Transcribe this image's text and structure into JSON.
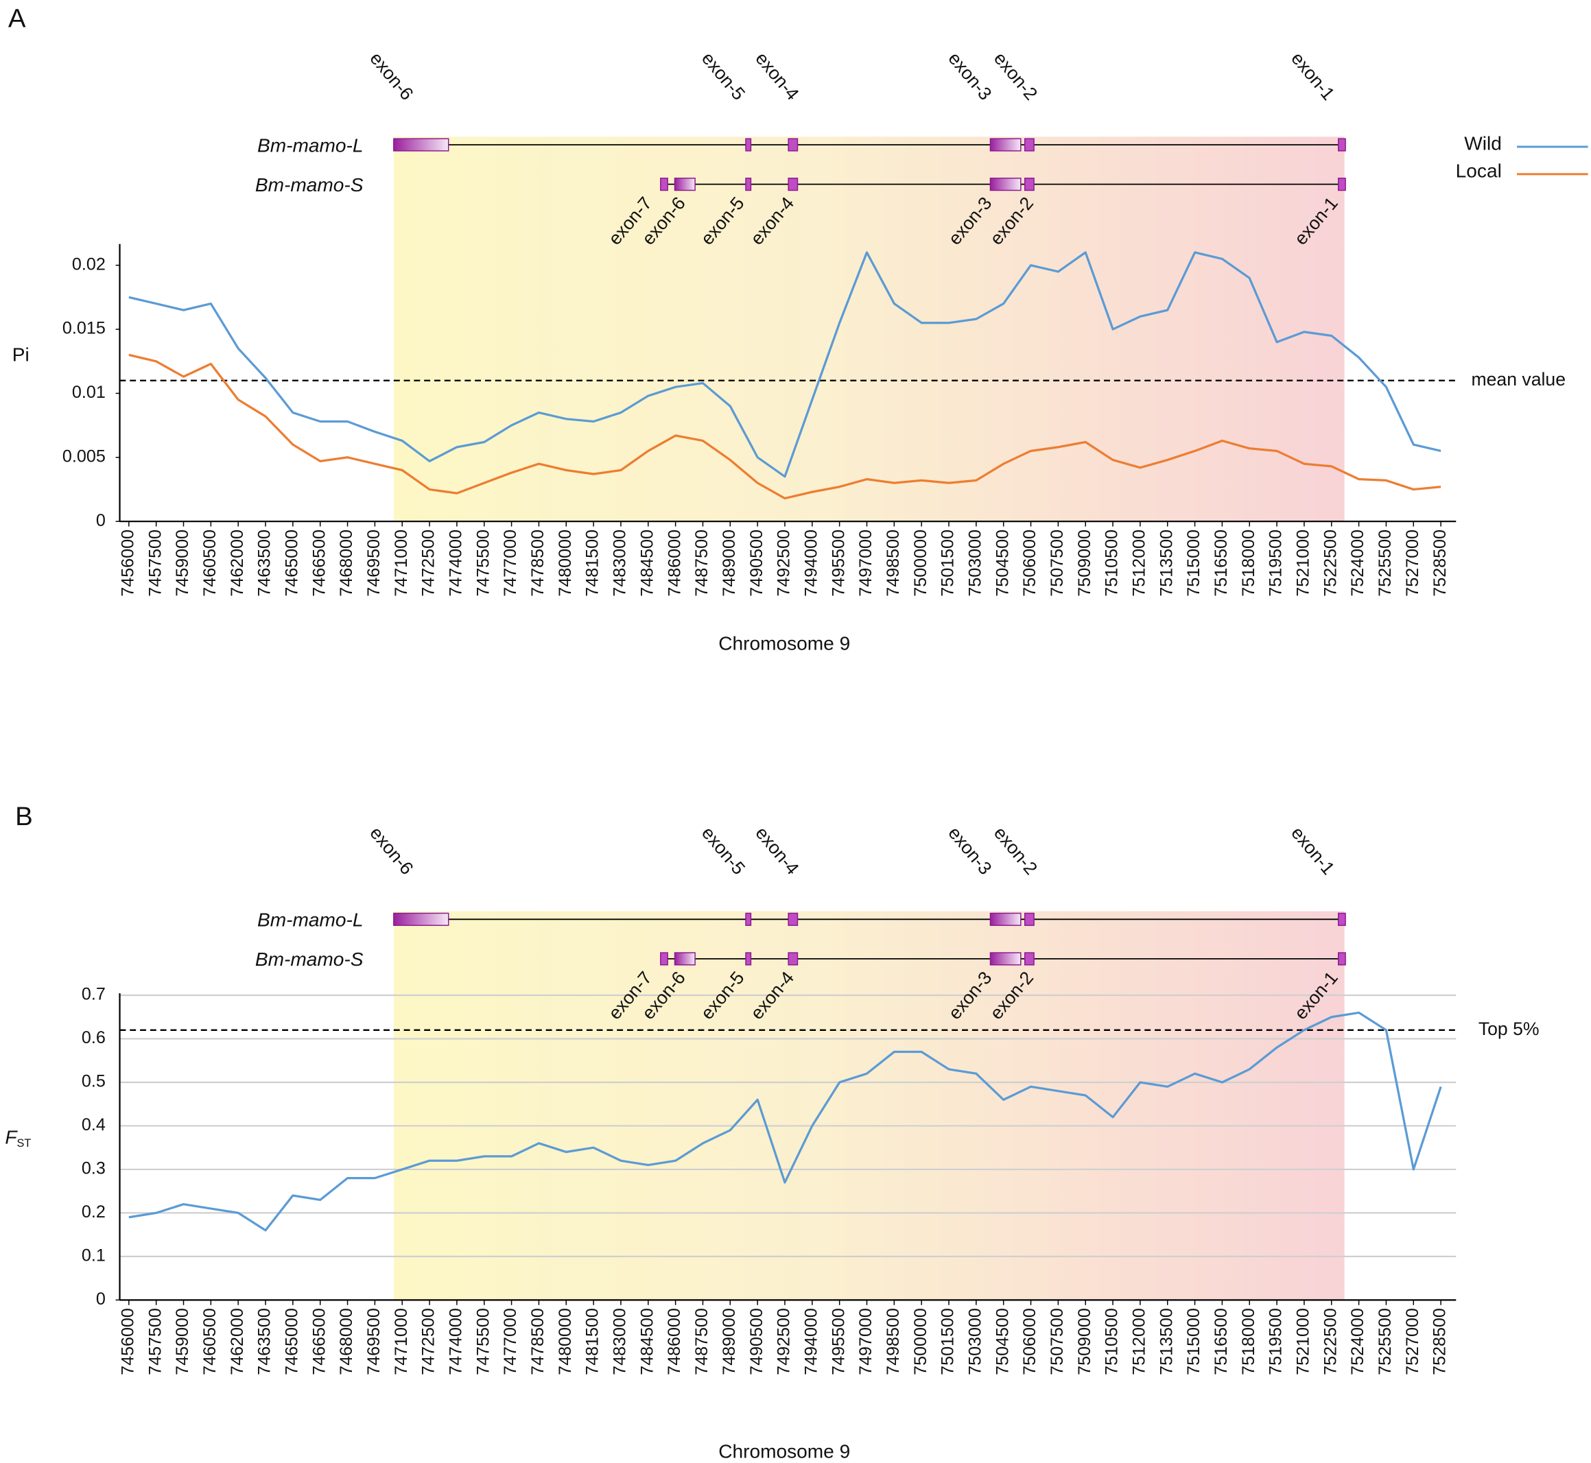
{
  "chart_data": [
    {
      "panel": "A",
      "type": "line",
      "gene_models": [
        {
          "name": "Bm-mamo-L",
          "exon_labels": [
            "exon-6",
            "exon-5",
            "exon-4",
            "exon-3",
            "exon-2",
            "exon-1"
          ]
        },
        {
          "name": "Bm-mamo-S",
          "exon_labels": [
            "exon-7",
            "exon-6",
            "exon-5",
            "exon-4",
            "exon-3",
            "exon-2",
            "exon-1"
          ]
        }
      ],
      "categories": [
        "7456000",
        "7457500",
        "7459000",
        "7460500",
        "7462000",
        "7463500",
        "7465000",
        "7466500",
        "7468000",
        "7469500",
        "7471000",
        "7472500",
        "7474000",
        "7475500",
        "7477000",
        "7478500",
        "7480000",
        "7481500",
        "7483000",
        "7484500",
        "7486000",
        "7487500",
        "7489000",
        "7490500",
        "7492500",
        "7494000",
        "7495500",
        "7497000",
        "7498500",
        "7500000",
        "7501500",
        "7503000",
        "7504500",
        "7506000",
        "7507500",
        "7509000",
        "7510500",
        "7512000",
        "7513500",
        "7515000",
        "7516500",
        "7518000",
        "7519500",
        "7521000",
        "7522500",
        "7524000",
        "7525500",
        "7527000",
        "7528500"
      ],
      "series": [
        {
          "name": "Wild",
          "color": "#5b9bd5",
          "values": [
            0.0175,
            0.017,
            0.0165,
            0.017,
            0.0135,
            0.0112,
            0.0085,
            0.0078,
            0.0078,
            0.007,
            0.0063,
            0.0047,
            0.0058,
            0.0062,
            0.0075,
            0.0085,
            0.008,
            0.0078,
            0.0085,
            0.0098,
            0.0105,
            0.0108,
            0.009,
            0.005,
            0.0035,
            0.0095,
            0.0155,
            0.021,
            0.017,
            0.0155,
            0.0155,
            0.0158,
            0.017,
            0.02,
            0.0195,
            0.021,
            0.015,
            0.016,
            0.0165,
            0.021,
            0.0205,
            0.019,
            0.014,
            0.0148,
            0.0145,
            0.0128,
            0.0105,
            0.006,
            0.0055
          ]
        },
        {
          "name": "Local",
          "color": "#ed7d31",
          "values": [
            0.013,
            0.0125,
            0.0113,
            0.0123,
            0.0095,
            0.0082,
            0.006,
            0.0047,
            0.005,
            0.0045,
            0.004,
            0.0025,
            0.0022,
            0.003,
            0.0038,
            0.0045,
            0.004,
            0.0037,
            0.004,
            0.0055,
            0.0067,
            0.0063,
            0.0048,
            0.003,
            0.0018,
            0.0023,
            0.0027,
            0.0033,
            0.003,
            0.0032,
            0.003,
            0.0032,
            0.0045,
            0.0055,
            0.0058,
            0.0062,
            0.0048,
            0.0042,
            0.0048,
            0.0055,
            0.0063,
            0.0057,
            0.0055,
            0.0045,
            0.0043,
            0.0033,
            0.0032,
            0.0025,
            0.0027
          ]
        }
      ],
      "x_label": "Chromosome 9",
      "y_label": "Pi",
      "ylim": [
        0,
        0.0215
      ],
      "yticks": [
        0,
        0.005,
        0.01,
        0.015,
        0.02
      ],
      "grid": false,
      "reference_line": {
        "value": 0.011,
        "label": "mean value"
      },
      "legend": "top-right"
    },
    {
      "panel": "B",
      "type": "line",
      "gene_models": [
        {
          "name": "Bm-mamo-L",
          "exon_labels": [
            "exon-6",
            "exon-5",
            "exon-4",
            "exon-3",
            "exon-2",
            "exon-1"
          ]
        },
        {
          "name": "Bm-mamo-S",
          "exon_labels": [
            "exon-7",
            "exon-6",
            "exon-5",
            "exon-4",
            "exon-3",
            "exon-2",
            "exon-1"
          ]
        }
      ],
      "categories": [
        "7456000",
        "7457500",
        "7459000",
        "7460500",
        "7462000",
        "7463500",
        "7465000",
        "7466500",
        "7468000",
        "7469500",
        "7471000",
        "7472500",
        "7474000",
        "7475500",
        "7477000",
        "7478500",
        "7480000",
        "7481500",
        "7483000",
        "7484500",
        "7486000",
        "7487500",
        "7489000",
        "7490500",
        "7492500",
        "7494000",
        "7495500",
        "7497000",
        "7498500",
        "7500000",
        "7501500",
        "7503000",
        "7504500",
        "7506000",
        "7507500",
        "7509000",
        "7510500",
        "7512000",
        "7513500",
        "7515000",
        "7516500",
        "7518000",
        "7519500",
        "7521000",
        "7522500",
        "7524000",
        "7525500",
        "7527000",
        "7528500"
      ],
      "series": [
        {
          "color": "#5b9bd5",
          "values": [
            0.19,
            0.2,
            0.22,
            0.21,
            0.2,
            0.16,
            0.24,
            0.23,
            0.28,
            0.28,
            0.3,
            0.32,
            0.32,
            0.33,
            0.33,
            0.36,
            0.34,
            0.35,
            0.32,
            0.31,
            0.32,
            0.36,
            0.39,
            0.46,
            0.27,
            0.4,
            0.5,
            0.52,
            0.57,
            0.57,
            0.53,
            0.52,
            0.46,
            0.49,
            0.48,
            0.47,
            0.42,
            0.5,
            0.49,
            0.52,
            0.5,
            0.53,
            0.58,
            0.62,
            0.65,
            0.66,
            0.62,
            0.3,
            0.49
          ]
        }
      ],
      "x_label": "Chromosome 9",
      "y_label": "F",
      "y_label_subscript": "ST",
      "ylim": [
        0,
        0.7
      ],
      "yticks": [
        0,
        0.1,
        0.2,
        0.3,
        0.4,
        0.5,
        0.6,
        0.7
      ],
      "grid": true,
      "reference_line": {
        "value": 0.62,
        "label": "Top 5%"
      }
    }
  ]
}
